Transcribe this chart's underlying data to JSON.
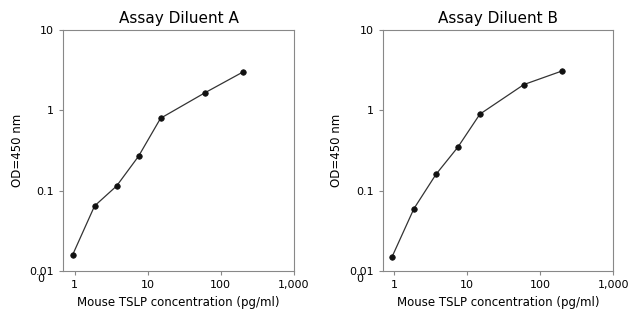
{
  "panel_A": {
    "title": "Assay Diluent A",
    "x": [
      0.938,
      1.875,
      3.75,
      7.5,
      15,
      60,
      200
    ],
    "y": [
      0.016,
      0.065,
      0.115,
      0.27,
      0.8,
      1.65,
      3.0
    ],
    "xlim": [
      0.7,
      1000
    ],
    "ylim": [
      0.01,
      10
    ],
    "xlabel": "Mouse TSLP concentration (pg/ml)",
    "ylabel": "OD=450 nm",
    "xticks": [
      1,
      10,
      100,
      1000
    ],
    "xtick_labels": [
      "1",
      "10",
      "100",
      "1,000"
    ],
    "yticks": [
      0.01,
      0.1,
      1,
      10
    ],
    "ytick_labels": [
      "0.01",
      "0.1",
      "1",
      "10"
    ]
  },
  "panel_B": {
    "title": "Assay Diluent B",
    "x": [
      0.938,
      1.875,
      3.75,
      7.5,
      15,
      60,
      200
    ],
    "y": [
      0.015,
      0.06,
      0.16,
      0.35,
      0.9,
      2.1,
      3.1
    ],
    "xlim": [
      0.7,
      1000
    ],
    "ylim": [
      0.01,
      10
    ],
    "xlabel": "Mouse TSLP concentration (pg/ml)",
    "ylabel": "OD=450 nm",
    "xticks": [
      1,
      10,
      100,
      1000
    ],
    "xtick_labels": [
      "1",
      "10",
      "100",
      "1,000"
    ],
    "yticks": [
      0.01,
      0.1,
      1,
      10
    ],
    "ytick_labels": [
      "0.01",
      "0.1",
      "1",
      "10"
    ]
  },
  "line_color": "#333333",
  "marker_color": "#111111",
  "bg_color": "#ffffff",
  "title_fontsize": 11,
  "label_fontsize": 8.5,
  "tick_fontsize": 8
}
